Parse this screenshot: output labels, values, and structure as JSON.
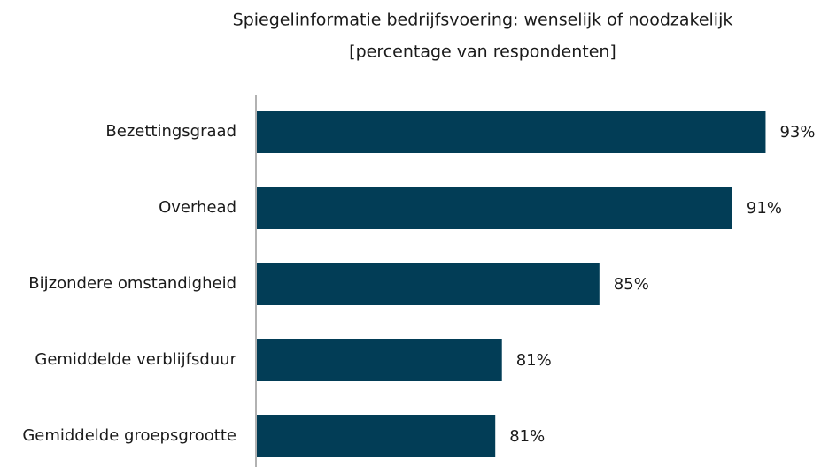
{
  "chart_data": {
    "type": "bar",
    "orientation": "horizontal",
    "title": [
      "Spiegelinformatie bedrijfsvoering: wenselijk of noodzakelijk",
      "[percentage van respondenten]"
    ],
    "categories": [
      "Bezettingsgraad",
      "Overhead",
      "Bijzondere omstandigheid",
      "Gemiddelde verblijfsduur",
      "Gemiddelde groepsgrootte"
    ],
    "values": [
      92.9,
      91.4,
      85.4,
      81.0,
      80.7
    ],
    "value_labels": [
      "93%",
      "91%",
      "85%",
      "81%",
      "81%"
    ],
    "color": "#023d56",
    "xlim": [
      69.9,
      95
    ]
  }
}
